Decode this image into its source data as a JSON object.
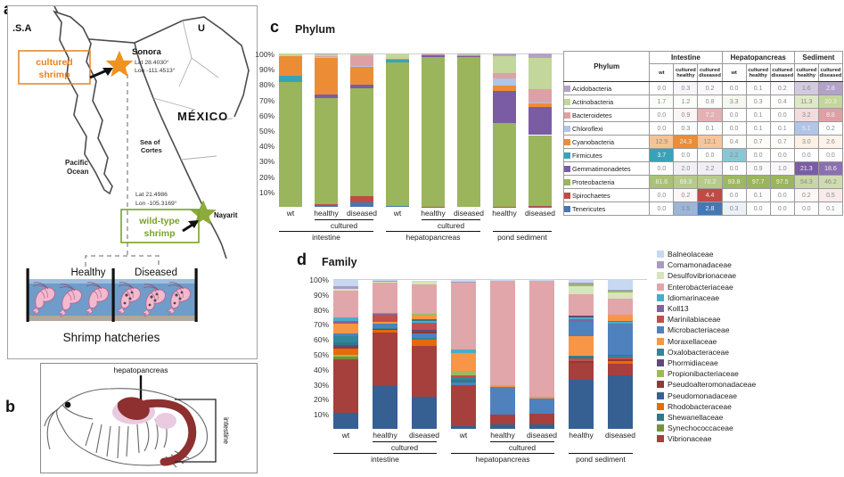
{
  "panel_a": {
    "label": "a",
    "usa": "U.S.A",
    "sonora": {
      "name": "Sonora",
      "lat": "Lat 28.4030°",
      "lon": "Lon -111.4513°"
    },
    "cultured_label": [
      "cultured",
      "shrimp"
    ],
    "mexico": "MÉXICO",
    "sea_of_cortes": [
      "Sea of",
      "Cortes"
    ],
    "pacific_ocean": [
      "Pacific",
      "Ocean"
    ],
    "nayarit": {
      "name": "Nayarit",
      "lat": "Lat 21.4986",
      "lon": "Lon -105.3169°"
    },
    "wild_label": [
      "wild-type",
      "shrimp"
    ],
    "tank_healthy": "Healthy",
    "tank_diseased": "Diseased",
    "caption": "Shrimp hatcheries",
    "accent_orange": "#e8821e",
    "accent_green": "#7aa22a"
  },
  "panel_b": {
    "label": "b",
    "hepatopancreas": "hepatopancreas",
    "intestine": "intestine"
  },
  "panel_c": {
    "label": "c",
    "title": "Phylum"
  },
  "panel_d": {
    "label": "d",
    "title": "Family"
  },
  "table": {
    "group_headers": [
      "Phylum",
      "Intestine",
      "Hepatopancreas",
      "Sediment"
    ],
    "sub_headers": [
      "wt",
      "cultured healthy",
      "cultured diseased",
      "wt",
      "cultured healthy",
      "cultured diseased",
      "cultured healthy",
      "cultured diseased"
    ]
  },
  "chart_data": [
    {
      "id": "phylum",
      "type": "bar",
      "stacked": true,
      "title": "Phylum",
      "ylim": [
        0,
        100
      ],
      "grid": false,
      "y_ticks": [
        "100%",
        "90%",
        "80%",
        "70%",
        "60%",
        "50%",
        "40%",
        "30%",
        "20%",
        "10%"
      ],
      "bar_labels": [
        "wt",
        "healthy",
        "diseased",
        "wt",
        "healthy",
        "diseased",
        "healthy",
        "diseased"
      ],
      "brackets": [
        {
          "label": "cultured",
          "from": 1,
          "to": 2
        },
        {
          "label": "cultured",
          "from": 4,
          "to": 5
        }
      ],
      "groups": [
        {
          "label": "intestine",
          "from": 0,
          "to": 2
        },
        {
          "label": "hepatopancreas",
          "from": 3,
          "to": 5
        },
        {
          "label": "pond sediment",
          "from": 6,
          "to": 7
        }
      ],
      "stack_bottom_to_top": [
        "Tenericutes",
        "Spirochaetes",
        "Proteobacteria",
        "Gemmatimonadetes",
        "Firmicutes",
        "Cyanobacteria",
        "Chloroflexi",
        "Bacteroidetes",
        "Actinobacteria",
        "Acidobacteria"
      ],
      "series": [
        {
          "name": "Acidobacteria",
          "color": "#b3a2c7",
          "values": [
            0.0,
            0.3,
            0.2,
            0.0,
            0.1,
            0.2,
            1.6,
            2.8
          ]
        },
        {
          "name": "Actinobacteria",
          "color": "#c3d69b",
          "values": [
            1.7,
            1.2,
            0.8,
            3.3,
            0.3,
            0.4,
            11.3,
            20.3
          ]
        },
        {
          "name": "Bacteroidetes",
          "color": "#dfa0a5",
          "values": [
            0.0,
            0.9,
            7.2,
            0.0,
            0.1,
            0.0,
            3.2,
            8.8
          ]
        },
        {
          "name": "Chloroflexi",
          "color": "#b0c5e7",
          "values": [
            0.0,
            0.3,
            0.1,
            0.0,
            0.1,
            0.1,
            5.1,
            0.2
          ]
        },
        {
          "name": "Cyanobacteria",
          "color": "#ec8d35",
          "values": [
            12.9,
            24.3,
            12.1,
            0.4,
            0.7,
            0.7,
            3.0,
            2.6
          ]
        },
        {
          "name": "Firmicutes",
          "color": "#38a3b8",
          "values": [
            3.7,
            0.0,
            0.0,
            2.2,
            0.0,
            0.0,
            0.0,
            0.0
          ]
        },
        {
          "name": "Gemmatimonadetes",
          "color": "#7a5ca5",
          "values": [
            0.0,
            2.0,
            2.2,
            0.0,
            0.9,
            1.0,
            21.3,
            18.6
          ]
        },
        {
          "name": "Proteobacteria",
          "color": "#9ab55c",
          "values": [
            81.6,
            69.3,
            70.2,
            93.8,
            97.7,
            97.5,
            54.3,
            46.2
          ]
        },
        {
          "name": "Spirochaetes",
          "color": "#bf4b45",
          "values": [
            0.0,
            0.2,
            4.4,
            0.0,
            0.1,
            0.0,
            0.2,
            0.5
          ]
        },
        {
          "name": "Tenericutes",
          "color": "#4577b5",
          "values": [
            0.0,
            1.5,
            2.8,
            0.3,
            0.0,
            0.0,
            0.0,
            0.1
          ]
        }
      ]
    },
    {
      "id": "family",
      "type": "bar",
      "stacked": true,
      "title": "Family",
      "ylim": [
        0,
        100
      ],
      "grid": false,
      "y_ticks": [
        "100%",
        "90%",
        "80%",
        "70%",
        "60%",
        "50%",
        "40%",
        "30%",
        "20%",
        "10%"
      ],
      "bar_labels": [
        "wt",
        "healthy",
        "diseased",
        "wt",
        "healthy",
        "diseased",
        "healthy",
        "diseased"
      ],
      "brackets": [
        {
          "label": "cultured",
          "from": 1,
          "to": 2
        },
        {
          "label": "cultured",
          "from": 4,
          "to": 5
        }
      ],
      "groups": [
        {
          "label": "intestine",
          "from": 0,
          "to": 2
        },
        {
          "label": "hepatopancreas",
          "from": 3,
          "to": 5
        },
        {
          "label": "pond sediment",
          "from": 6,
          "to": 7
        }
      ],
      "families": [
        {
          "name": "Balneolaceae",
          "color": "#c6d9f1"
        },
        {
          "name": "Comamonadaceae",
          "color": "#a99bc0"
        },
        {
          "name": "Desulfovibrionaceae",
          "color": "#d7e4bc"
        },
        {
          "name": "Enterobacteriaceae",
          "color": "#e0a6a9"
        },
        {
          "name": "Idiomarinaceae",
          "color": "#4bacc6"
        },
        {
          "name": "Koll13",
          "color": "#8064a2"
        },
        {
          "name": "Marinilabiaceae",
          "color": "#c0504d"
        },
        {
          "name": "Microbacteriaceae",
          "color": "#4f81bd"
        },
        {
          "name": "Moraxellaceae",
          "color": "#f79646"
        },
        {
          "name": "Oxalobacteraceae",
          "color": "#31859c"
        },
        {
          "name": "Phormidiaceae",
          "color": "#5f4a7b"
        },
        {
          "name": "Propionibacteriaceae",
          "color": "#9bbb59"
        },
        {
          "name": "Pseudoalteromonadaceae",
          "color": "#953734"
        },
        {
          "name": "Pseudomonadaceae",
          "color": "#366092"
        },
        {
          "name": "Rhodobacteraceae",
          "color": "#e36c0a"
        },
        {
          "name": "Shewanellaceae",
          "color": "#2e7a87"
        },
        {
          "name": "Synechococcaceae",
          "color": "#76923c"
        },
        {
          "name": "Vibrionaceae",
          "color": "#a5403d"
        }
      ],
      "bars": [
        {
          "segments": [
            [
              "Pseudomonadaceae",
              11
            ],
            [
              "Vibrionaceae",
              35.5
            ],
            [
              "Synechococcaceae",
              1.5
            ],
            [
              "Propionibacteriaceae",
              1.5
            ],
            [
              "Rhodobacteraceae",
              4
            ],
            [
              "Pseudoalteromonadaceae",
              1.5
            ],
            [
              "Phormidiaceae",
              1
            ],
            [
              "Shewanellaceae",
              1.5
            ],
            [
              "Oxalobacteraceae",
              4.5
            ],
            [
              "Microbacteriaceae",
              1.5
            ],
            [
              "Moraxellaceae",
              6.5
            ],
            [
              "Marinilabiaceae",
              1
            ],
            [
              "Koll13",
              1
            ],
            [
              "Idiomarinaceae",
              2.5
            ],
            [
              "Enterobacteriaceae",
              17.5
            ],
            [
              "Desulfovibrionaceae",
              1.5
            ],
            [
              "Comamonadaceae",
              1.5
            ],
            [
              "Balneolaceae",
              4.5
            ]
          ]
        },
        {
          "segments": [
            [
              "Pseudomonadaceae",
              28.5
            ],
            [
              "Vibrionaceae",
              36
            ],
            [
              "Rhodobacteraceae",
              1.5
            ],
            [
              "Pseudoalteromonadaceae",
              1
            ],
            [
              "Oxalobacteraceae",
              0.5
            ],
            [
              "Microbacteriaceae",
              2.5
            ],
            [
              "Moraxellaceae",
              1.5
            ],
            [
              "Marinilabiaceae",
              4.5
            ],
            [
              "Koll13",
              1
            ],
            [
              "Idiomarinaceae",
              0.5
            ],
            [
              "Enterobacteriaceae",
              20.5
            ],
            [
              "Desulfovibrionaceae",
              0.5
            ],
            [
              "Comamonadaceae",
              0.5
            ],
            [
              "Balneolaceae",
              0.5
            ]
          ]
        },
        {
          "segments": [
            [
              "Pseudomonadaceae",
              21.5
            ],
            [
              "Vibrionaceae",
              34
            ],
            [
              "Rhodobacteraceae",
              4
            ],
            [
              "Oxalobacteraceae",
              1
            ],
            [
              "Microbacteriaceae",
              3
            ],
            [
              "Pseudoalteromonadaceae",
              1.5
            ],
            [
              "Phormidiaceae",
              1
            ],
            [
              "Marinilabiaceae",
              4
            ],
            [
              "Koll13",
              1
            ],
            [
              "Idiomarinaceae",
              1
            ],
            [
              "Shewanellaceae",
              1
            ],
            [
              "Moraxellaceae",
              2.5
            ],
            [
              "Propionibacteriaceae",
              1
            ],
            [
              "Enterobacteriaceae",
              20
            ],
            [
              "Desulfovibrionaceae",
              1.5
            ],
            [
              "Balneolaceae",
              1
            ]
          ]
        },
        {
          "segments": [
            [
              "Pseudomonadaceae",
              2
            ],
            [
              "Vibrionaceae",
              27
            ],
            [
              "Microbacteriaceae",
              2
            ],
            [
              "Shewanellaceae",
              1.5
            ],
            [
              "Oxalobacteraceae",
              2
            ],
            [
              "Marinilabiaceae",
              1.5
            ],
            [
              "Propionibacteriaceae",
              2.5
            ],
            [
              "Moraxellaceae",
              12
            ],
            [
              "Idiomarinaceae",
              2.5
            ],
            [
              "Enterobacteriaceae",
              44.5
            ],
            [
              "Comamonadaceae",
              0.5
            ],
            [
              "Balneolaceae",
              1.5
            ]
          ]
        },
        {
          "segments": [
            [
              "Pseudomonadaceae",
              3
            ],
            [
              "Vibrionaceae",
              6.5
            ],
            [
              "Microbacteriaceae",
              18.5
            ],
            [
              "Moraxellaceae",
              1
            ],
            [
              "Enterobacteriaceae",
              70
            ],
            [
              "Balneolaceae",
              1
            ]
          ]
        },
        {
          "segments": [
            [
              "Pseudomonadaceae",
              3
            ],
            [
              "Vibrionaceae",
              7
            ],
            [
              "Microbacteriaceae",
              10.5
            ],
            [
              "Moraxellaceae",
              1
            ],
            [
              "Enterobacteriaceae",
              77.5
            ],
            [
              "Balneolaceae",
              1
            ]
          ]
        },
        {
          "segments": [
            [
              "Pseudomonadaceae",
              33
            ],
            [
              "Vibrionaceae",
              11
            ],
            [
              "Pseudoalteromonadaceae",
              1.5
            ],
            [
              "Marinilabiaceae",
              1.5
            ],
            [
              "Shewanellaceae",
              1
            ],
            [
              "Oxalobacteraceae",
              1
            ],
            [
              "Moraxellaceae",
              13
            ],
            [
              "Microbacteriaceae",
              9.5
            ],
            [
              "Koll13",
              1.5
            ],
            [
              "Idiomarinaceae",
              1.5
            ],
            [
              "Phormidiaceae",
              1
            ],
            [
              "Enterobacteriaceae",
              14.5
            ],
            [
              "Desulfovibrionaceae",
              5
            ],
            [
              "Propionibacteriaceae",
              1.5
            ],
            [
              "Comamonadaceae",
              1
            ],
            [
              "Balneolaceae",
              2.5
            ]
          ]
        },
        {
          "segments": [
            [
              "Pseudomonadaceae",
              35.5
            ],
            [
              "Vibrionaceae",
              8
            ],
            [
              "Rhodobacteraceae",
              1.5
            ],
            [
              "Pseudoalteromonadaceae",
              1.5
            ],
            [
              "Marinilabiaceae",
              1
            ],
            [
              "Oxalobacteraceae",
              1.5
            ],
            [
              "Shewanellaceae",
              0.5
            ],
            [
              "Microbacteriaceae",
              20.5
            ],
            [
              "Idiomarinaceae",
              1.5
            ],
            [
              "Koll13",
              0.5
            ],
            [
              "Moraxellaceae",
              4
            ],
            [
              "Enterobacteriaceae",
              11
            ],
            [
              "Desulfovibrionaceae",
              4
            ],
            [
              "Propionibacteriaceae",
              1
            ],
            [
              "Comamonadaceae",
              1
            ],
            [
              "Balneolaceae",
              7
            ]
          ]
        }
      ]
    }
  ]
}
